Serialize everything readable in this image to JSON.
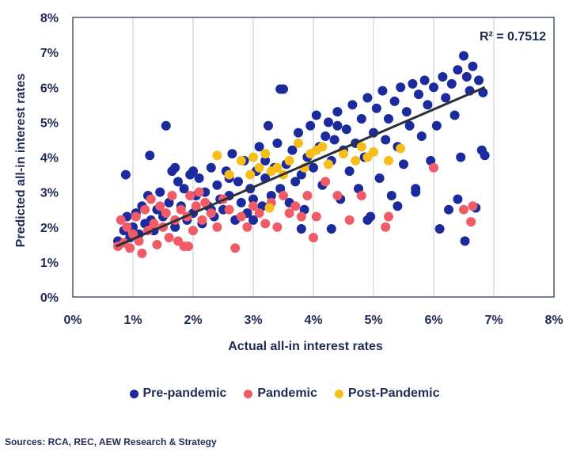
{
  "chart_data": {
    "type": "scatter",
    "xlabel": "Actual all-in interest rates",
    "ylabel": "Predicted all-in interest rates",
    "xlim": [
      0,
      8
    ],
    "ylim": [
      0,
      8
    ],
    "x_ticks": [
      "0%",
      "1%",
      "2%",
      "3%",
      "4%",
      "5%",
      "6%",
      "7%",
      "8%"
    ],
    "y_ticks": [
      "0%",
      "1%",
      "2%",
      "3%",
      "4%",
      "5%",
      "6%",
      "7%",
      "8%"
    ],
    "grid": "vertical",
    "annotation": "R² = 0.7512",
    "trendline": {
      "x": [
        0.72,
        6.85
      ],
      "y": [
        1.45,
        6.0
      ]
    },
    "series": [
      {
        "name": "Pre-pandemic",
        "color": "#1b2a9c",
        "points": [
          [
            0.75,
            1.6
          ],
          [
            0.85,
            1.9
          ],
          [
            0.9,
            2.3
          ],
          [
            0.95,
            1.7
          ],
          [
            1.0,
            2.0
          ],
          [
            1.05,
            2.4
          ],
          [
            1.1,
            1.8
          ],
          [
            1.15,
            2.6
          ],
          [
            1.2,
            2.1
          ],
          [
            1.25,
            2.9
          ],
          [
            1.3,
            2.2
          ],
          [
            1.35,
            1.9
          ],
          [
            1.4,
            2.5
          ],
          [
            1.45,
            3.0
          ],
          [
            1.5,
            2.3
          ],
          [
            1.55,
            4.9
          ],
          [
            1.6,
            2.7
          ],
          [
            1.65,
            3.6
          ],
          [
            1.7,
            2.0
          ],
          [
            1.75,
            3.3
          ],
          [
            1.8,
            2.6
          ],
          [
            1.85,
            3.1
          ],
          [
            1.9,
            2.2
          ],
          [
            1.95,
            3.5
          ],
          [
            2.0,
            2.4
          ],
          [
            2.05,
            2.9
          ],
          [
            2.1,
            3.4
          ],
          [
            2.15,
            2.1
          ],
          [
            2.2,
            3.0
          ],
          [
            2.25,
            2.6
          ],
          [
            2.3,
            3.7
          ],
          [
            2.35,
            2.3
          ],
          [
            2.4,
            3.2
          ],
          [
            2.45,
            2.8
          ],
          [
            2.5,
            2.5
          ],
          [
            2.55,
            3.6
          ],
          [
            2.6,
            2.9
          ],
          [
            2.65,
            4.1
          ],
          [
            2.7,
            2.2
          ],
          [
            2.75,
            3.3
          ],
          [
            2.8,
            2.7
          ],
          [
            2.85,
            3.9
          ],
          [
            2.9,
            2.4
          ],
          [
            2.95,
            3.1
          ],
          [
            3.0,
            2.8
          ],
          [
            3.05,
            3.6
          ],
          [
            3.1,
            4.3
          ],
          [
            3.15,
            2.6
          ],
          [
            3.2,
            3.4
          ],
          [
            3.25,
            4.9
          ],
          [
            3.3,
            2.9
          ],
          [
            3.35,
            3.7
          ],
          [
            3.4,
            4.4
          ],
          [
            3.45,
            3.1
          ],
          [
            3.5,
            5.95
          ],
          [
            3.55,
            3.8
          ],
          [
            3.6,
            2.7
          ],
          [
            3.65,
            4.2
          ],
          [
            3.7,
            3.3
          ],
          [
            3.75,
            4.7
          ],
          [
            3.8,
            3.5
          ],
          [
            3.85,
            2.5
          ],
          [
            3.9,
            4.0
          ],
          [
            3.95,
            4.9
          ],
          [
            4.0,
            3.7
          ],
          [
            4.05,
            5.2
          ],
          [
            4.1,
            4.3
          ],
          [
            4.15,
            3.2
          ],
          [
            4.2,
            4.6
          ],
          [
            4.25,
            5.0
          ],
          [
            4.3,
            3.9
          ],
          [
            4.35,
            4.5
          ],
          [
            4.4,
            5.3
          ],
          [
            4.45,
            2.8
          ],
          [
            4.5,
            4.2
          ],
          [
            4.55,
            4.8
          ],
          [
            4.6,
            3.6
          ],
          [
            4.65,
            5.5
          ],
          [
            4.7,
            4.4
          ],
          [
            4.75,
            3.1
          ],
          [
            4.8,
            5.1
          ],
          [
            4.85,
            4.0
          ],
          [
            4.9,
            5.7
          ],
          [
            4.95,
            2.3
          ],
          [
            5.0,
            4.7
          ],
          [
            5.05,
            5.4
          ],
          [
            5.1,
            3.4
          ],
          [
            5.15,
            5.9
          ],
          [
            5.2,
            4.5
          ],
          [
            5.25,
            5.1
          ],
          [
            5.3,
            2.9
          ],
          [
            5.35,
            5.6
          ],
          [
            5.4,
            4.3
          ],
          [
            5.45,
            6.0
          ],
          [
            5.5,
            3.8
          ],
          [
            5.55,
            5.3
          ],
          [
            5.6,
            4.9
          ],
          [
            5.65,
            6.1
          ],
          [
            5.7,
            3.1
          ],
          [
            5.75,
            5.8
          ],
          [
            5.8,
            4.6
          ],
          [
            5.85,
            6.2
          ],
          [
            5.9,
            5.5
          ],
          [
            5.95,
            3.9
          ],
          [
            6.0,
            6.0
          ],
          [
            6.05,
            4.9
          ],
          [
            6.1,
            1.95
          ],
          [
            6.15,
            6.3
          ],
          [
            6.2,
            5.7
          ],
          [
            6.25,
            2.5
          ],
          [
            6.3,
            6.1
          ],
          [
            6.35,
            5.2
          ],
          [
            6.4,
            6.5
          ],
          [
            6.45,
            4.0
          ],
          [
            6.5,
            6.9
          ],
          [
            6.52,
            1.6
          ],
          [
            6.55,
            6.3
          ],
          [
            6.6,
            5.9
          ],
          [
            6.65,
            6.6
          ],
          [
            6.7,
            2.55
          ],
          [
            6.75,
            6.2
          ],
          [
            6.8,
            4.2
          ],
          [
            6.82,
            5.85
          ],
          [
            6.85,
            4.05
          ],
          [
            0.88,
            3.5
          ],
          [
            1.28,
            4.05
          ],
          [
            3.45,
            5.95
          ],
          [
            2.3,
            2.5
          ],
          [
            3.0,
            2.2
          ],
          [
            3.8,
            1.95
          ],
          [
            4.3,
            1.95
          ],
          [
            4.9,
            2.2
          ],
          [
            5.4,
            2.6
          ],
          [
            5.7,
            3.0
          ],
          [
            6.4,
            2.8
          ],
          [
            1.7,
            3.7
          ],
          [
            2.0,
            3.6
          ],
          [
            2.6,
            3.4
          ],
          [
            3.2,
            3.9
          ],
          [
            4.4,
            4.9
          ]
        ]
      },
      {
        "name": "Pandemic",
        "color": "#ef5b66",
        "points": [
          [
            0.75,
            1.45
          ],
          [
            0.8,
            2.2
          ],
          [
            0.85,
            1.55
          ],
          [
            0.9,
            2.0
          ],
          [
            0.95,
            1.4
          ],
          [
            1.0,
            1.8
          ],
          [
            1.05,
            2.3
          ],
          [
            1.1,
            1.6
          ],
          [
            1.15,
            1.25
          ],
          [
            1.2,
            2.5
          ],
          [
            1.25,
            1.9
          ],
          [
            1.3,
            2.8
          ],
          [
            1.35,
            2.1
          ],
          [
            1.4,
            1.5
          ],
          [
            1.45,
            2.6
          ],
          [
            1.5,
            2.0
          ],
          [
            1.55,
            2.4
          ],
          [
            1.6,
            1.7
          ],
          [
            1.65,
            2.9
          ],
          [
            1.7,
            2.2
          ],
          [
            1.75,
            1.6
          ],
          [
            1.8,
            2.5
          ],
          [
            1.85,
            1.45
          ],
          [
            1.9,
            2.3
          ],
          [
            1.95,
            2.9
          ],
          [
            2.0,
            1.9
          ],
          [
            2.05,
            2.6
          ],
          [
            2.1,
            3.0
          ],
          [
            2.15,
            2.2
          ],
          [
            2.2,
            2.7
          ],
          [
            2.3,
            2.4
          ],
          [
            2.4,
            2.0
          ],
          [
            2.5,
            2.8
          ],
          [
            2.6,
            2.5
          ],
          [
            2.7,
            1.4
          ],
          [
            2.8,
            2.3
          ],
          [
            2.9,
            2.0
          ],
          [
            3.0,
            2.6
          ],
          [
            3.1,
            2.4
          ],
          [
            3.2,
            2.1
          ],
          [
            3.3,
            2.7
          ],
          [
            3.4,
            2.0
          ],
          [
            3.5,
            2.9
          ],
          [
            3.6,
            2.4
          ],
          [
            3.7,
            2.6
          ],
          [
            3.8,
            2.3
          ],
          [
            3.9,
            2.9
          ],
          [
            4.0,
            1.7
          ],
          [
            4.05,
            2.3
          ],
          [
            4.2,
            3.3
          ],
          [
            4.4,
            2.9
          ],
          [
            4.6,
            2.2
          ],
          [
            4.8,
            2.9
          ],
          [
            5.2,
            2.0
          ],
          [
            5.25,
            2.3
          ],
          [
            6.0,
            3.7
          ],
          [
            6.5,
            2.5
          ],
          [
            6.62,
            2.15
          ],
          [
            6.65,
            2.6
          ],
          [
            1.92,
            1.45
          ]
        ]
      },
      {
        "name": "Post-Pandemic",
        "color": "#f5be1a",
        "points": [
          [
            2.4,
            4.05
          ],
          [
            2.6,
            3.5
          ],
          [
            2.8,
            3.9
          ],
          [
            2.95,
            3.5
          ],
          [
            3.0,
            4.0
          ],
          [
            3.1,
            3.7
          ],
          [
            3.2,
            4.1
          ],
          [
            3.3,
            3.6
          ],
          [
            3.4,
            3.7
          ],
          [
            3.5,
            3.5
          ],
          [
            3.6,
            3.9
          ],
          [
            3.75,
            4.4
          ],
          [
            3.85,
            3.7
          ],
          [
            3.95,
            4.1
          ],
          [
            4.05,
            4.2
          ],
          [
            4.15,
            4.3
          ],
          [
            4.25,
            3.8
          ],
          [
            4.5,
            4.1
          ],
          [
            4.7,
            3.9
          ],
          [
            4.8,
            4.3
          ],
          [
            4.9,
            4.0
          ],
          [
            5.0,
            4.15
          ],
          [
            5.25,
            3.9
          ],
          [
            5.45,
            4.25
          ],
          [
            3.27,
            2.55
          ]
        ]
      }
    ]
  },
  "legend": [
    {
      "label": "Pre-pandemic",
      "color": "#1b2a9c"
    },
    {
      "label": "Pandemic",
      "color": "#ef5b66"
    },
    {
      "label": "Post-Pandemic",
      "color": "#f5be1a"
    }
  ],
  "source": "Sources: RCA, REC, AEW Research & Strategy"
}
